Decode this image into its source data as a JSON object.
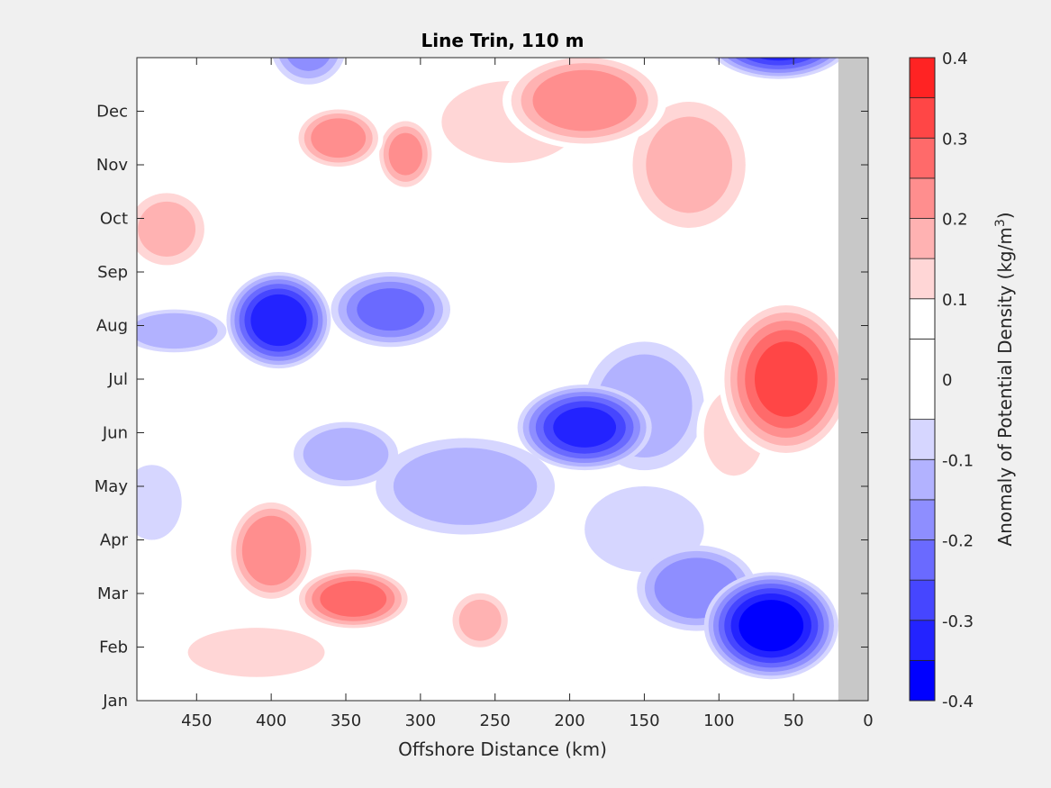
{
  "chart_data": {
    "type": "heatmap",
    "title": "Line Trin, 110 m",
    "xlabel": "Offshore Distance (km)",
    "ylabel": "",
    "xlim": [
      490,
      0
    ],
    "x_reversed": true,
    "xticks": [
      450,
      400,
      350,
      300,
      250,
      200,
      150,
      100,
      50,
      0
    ],
    "yticks": [
      "Jan",
      "Feb",
      "Mar",
      "Apr",
      "May",
      "Jun",
      "Jul",
      "Aug",
      "Sep",
      "Oct",
      "Nov",
      "Dec"
    ],
    "masked_land_from_km": 20,
    "colorbar": {
      "label_prefix": "Anomaly of Potential Density (kg/m",
      "label_exponent": "3",
      "label_suffix": ")",
      "range": [
        -0.4,
        0.4
      ],
      "ticks": [
        "0.4",
        "0.3",
        "0.2",
        "0.1",
        "0",
        "-0.1",
        "-0.2",
        "-0.3",
        "-0.4"
      ],
      "levels": [
        -0.4,
        -0.35,
        -0.3,
        -0.25,
        -0.2,
        -0.15,
        -0.1,
        -0.05,
        0.05,
        0.1,
        0.15,
        0.2,
        0.25,
        0.3,
        0.35,
        0.4
      ],
      "colors": [
        "#0000ff",
        "#2323ff",
        "#4646ff",
        "#6a6aff",
        "#8e8eff",
        "#b2b2ff",
        "#d6d6ff",
        "#ffffff",
        "#ffffff",
        "#ffd6d6",
        "#ffb2b2",
        "#ff8e8e",
        "#ff6a6a",
        "#ff4646",
        "#ff2323",
        "#ff0000"
      ]
    },
    "anomaly_features": [
      {
        "x_km": 375,
        "month": 12.2,
        "value": -0.15,
        "spread": [
          25,
          0.7
        ]
      },
      {
        "x_km": 60,
        "month": 12.4,
        "value": -0.35,
        "spread": [
          50,
          0.8
        ]
      },
      {
        "x_km": 190,
        "month": 11.2,
        "value": 0.23,
        "spread": [
          55,
          0.9
        ]
      },
      {
        "x_km": 120,
        "month": 10.0,
        "value": 0.15,
        "spread": [
          45,
          1.4
        ]
      },
      {
        "x_km": 355,
        "month": 10.5,
        "value": 0.22,
        "spread": [
          30,
          0.6
        ]
      },
      {
        "x_km": 310,
        "month": 10.2,
        "value": 0.2,
        "spread": [
          20,
          0.7
        ]
      },
      {
        "x_km": 240,
        "month": 10.8,
        "value": 0.1,
        "spread": [
          60,
          1.0
        ]
      },
      {
        "x_km": 470,
        "month": 8.8,
        "value": 0.15,
        "spread": [
          30,
          0.8
        ]
      },
      {
        "x_km": 395,
        "month": 7.1,
        "value": -0.33,
        "spread": [
          35,
          0.9
        ]
      },
      {
        "x_km": 320,
        "month": 7.3,
        "value": -0.2,
        "spread": [
          40,
          0.7
        ]
      },
      {
        "x_km": 465,
        "month": 6.9,
        "value": -0.14,
        "spread": [
          35,
          0.4
        ]
      },
      {
        "x_km": 190,
        "month": 5.1,
        "value": -0.3,
        "spread": [
          45,
          0.8
        ]
      },
      {
        "x_km": 150,
        "month": 5.5,
        "value": -0.12,
        "spread": [
          40,
          1.2
        ]
      },
      {
        "x_km": 55,
        "month": 6.0,
        "value": 0.3,
        "spread": [
          45,
          1.5
        ]
      },
      {
        "x_km": 90,
        "month": 5.0,
        "value": 0.12,
        "spread": [
          25,
          1.0
        ]
      },
      {
        "x_km": 350,
        "month": 4.6,
        "value": -0.13,
        "spread": [
          35,
          0.6
        ]
      },
      {
        "x_km": 270,
        "month": 4.0,
        "value": -0.12,
        "spread": [
          60,
          0.9
        ]
      },
      {
        "x_km": 480,
        "month": 3.7,
        "value": -0.08,
        "spread": [
          20,
          0.7
        ]
      },
      {
        "x_km": 400,
        "month": 2.8,
        "value": 0.24,
        "spread": [
          30,
          1.0
        ]
      },
      {
        "x_km": 345,
        "month": 1.9,
        "value": 0.27,
        "spread": [
          40,
          0.6
        ]
      },
      {
        "x_km": 260,
        "month": 1.5,
        "value": 0.15,
        "spread": [
          22,
          0.6
        ]
      },
      {
        "x_km": 410,
        "month": 0.9,
        "value": 0.1,
        "spread": [
          60,
          0.6
        ]
      },
      {
        "x_km": 65,
        "month": 1.4,
        "value": -0.37,
        "spread": [
          45,
          1.0
        ]
      },
      {
        "x_km": 115,
        "month": 2.1,
        "value": -0.18,
        "spread": [
          40,
          0.8
        ]
      },
      {
        "x_km": 150,
        "month": 3.2,
        "value": -0.08,
        "spread": [
          40,
          0.8
        ]
      }
    ]
  }
}
